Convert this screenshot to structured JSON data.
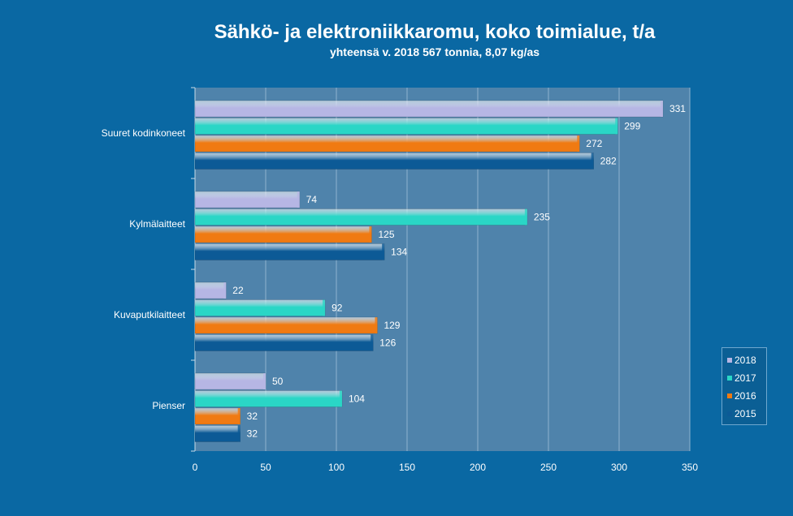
{
  "chart_data": {
    "type": "bar",
    "orientation": "horizontal",
    "title": "Sähkö- ja elektroniikkaromu, koko toimialue, t/a",
    "subtitle": "yhteensä v. 2018 567 tonnia, 8,07 kg/as",
    "categories": [
      "Suuret kodinkoneet",
      "Kylmälaitteet",
      "Kuvaputkilaitteet",
      "Pienser"
    ],
    "series": [
      {
        "name": "2018",
        "color": "#b6b6e4",
        "values": [
          331,
          74,
          22,
          50
        ]
      },
      {
        "name": "2017",
        "color": "#2ad6c6",
        "values": [
          299,
          235,
          92,
          104
        ]
      },
      {
        "name": "2016",
        "color": "#f07a12",
        "values": [
          272,
          125,
          129,
          32
        ]
      },
      {
        "name": "2015",
        "color": "#0c5a96",
        "values": [
          282,
          134,
          126,
          32
        ]
      }
    ],
    "xlim": [
      0,
      350
    ],
    "xticks": [
      "0",
      "50",
      "100",
      "150",
      "200",
      "250",
      "300",
      "350"
    ],
    "grid": true,
    "legend_position": "bottom-right",
    "plot_background": "#4f83ab"
  }
}
